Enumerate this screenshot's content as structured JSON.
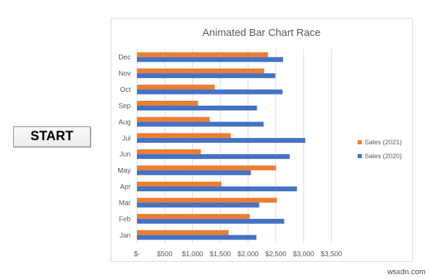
{
  "button": {
    "start_label": "START"
  },
  "watermark": "wsxdn.com",
  "chart_data": {
    "type": "bar",
    "orientation": "horizontal",
    "title": "Animated Bar Chart Race",
    "categories": [
      "Jan",
      "Feb",
      "Mar",
      "Apr",
      "May",
      "Jun",
      "Jul",
      "Aug",
      "Sep",
      "Oct",
      "Nov",
      "Dec"
    ],
    "series": [
      {
        "name": "Sales (2020)",
        "color": "#4472c4",
        "values": [
          2150,
          2650,
          2200,
          2880,
          2050,
          2750,
          3030,
          2280,
          2160,
          2620,
          2490,
          2630
        ]
      },
      {
        "name": "Sales (2021)",
        "color": "#ed7d31",
        "values": [
          1650,
          2030,
          2520,
          1520,
          2500,
          1150,
          1690,
          1310,
          1100,
          1400,
          2290,
          2360
        ]
      }
    ],
    "xlim": [
      0,
      3500
    ],
    "x_ticks": [
      0,
      500,
      1000,
      1500,
      2000,
      2500,
      3000,
      3500
    ],
    "x_tick_labels": [
      "$-",
      "$500",
      "$1,000",
      "$1,500",
      "$2,000",
      "$2,500",
      "$3,000",
      "$3,500"
    ],
    "grid": "vertical",
    "legend_placement": "right",
    "legend_order": [
      "Sales (2021)",
      "Sales (2020)"
    ]
  }
}
